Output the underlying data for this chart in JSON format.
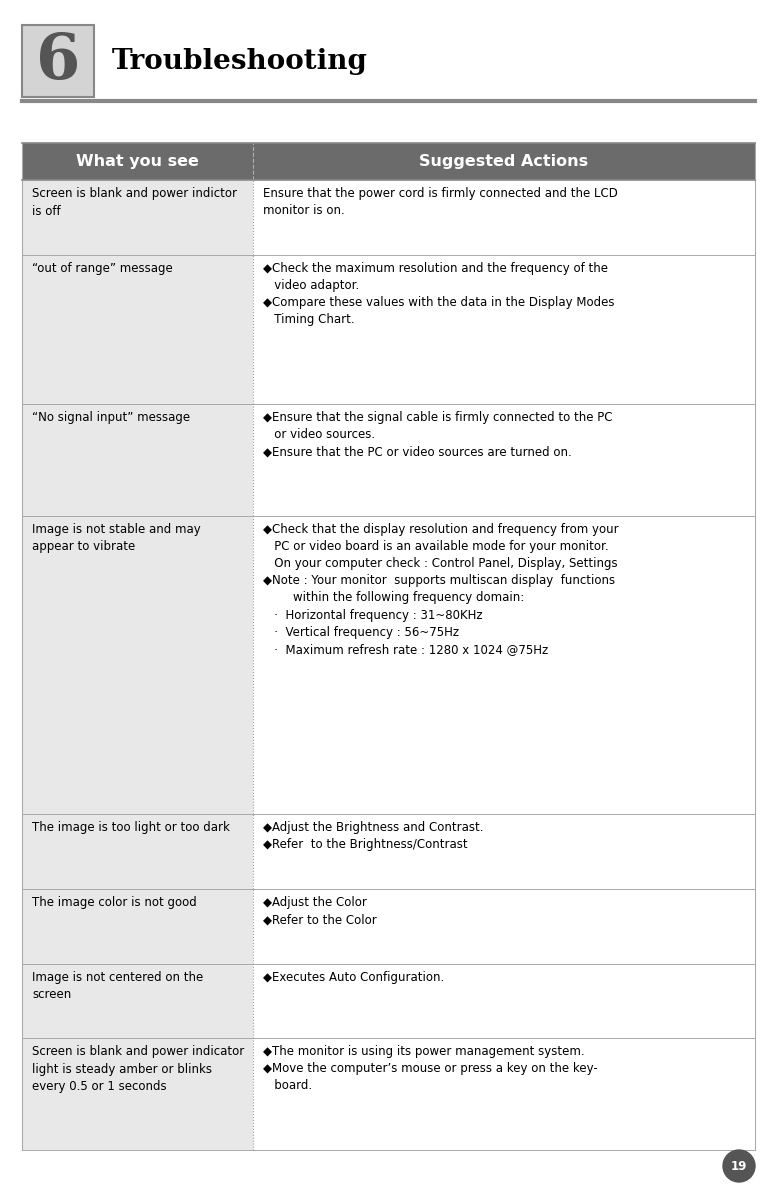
{
  "page_bg": "#ffffff",
  "header_bg": "#6b6b6b",
  "header_text_color": "#ffffff",
  "header_font_size": 11.5,
  "cell_font_size": 8.5,
  "chapter_num": "6",
  "chapter_title": "Troubleshooting",
  "page_number": "19",
  "col1_header": "What you see",
  "col2_header": "Suggested Actions",
  "col_split": 0.315,
  "row_left_bg": "#e8e8e8",
  "row_right_bg": "#ffffff",
  "table_rows": [
    {
      "left": "Screen is blank and power indictor\nis off",
      "right_lines": [
        {
          "text": "Ensure that the power cord is firmly connected and the LCD",
          "indent": 0,
          "bullet": false
        },
        {
          "text": "monitor is on.",
          "indent": 0,
          "bullet": false
        }
      ]
    },
    {
      "left": "“out of range” message",
      "right_lines": [
        {
          "text": "◆Check the maximum resolution and the frequency of the",
          "indent": 0,
          "bullet": false
        },
        {
          "text": "   video adaptor.",
          "indent": 0,
          "bullet": false
        },
        {
          "text": "◆Compare these values with the data in the Display Modes",
          "indent": 0,
          "bullet": false
        },
        {
          "text": "   Timing Chart.",
          "indent": 0,
          "bullet": false
        }
      ]
    },
    {
      "left": "“No signal input” message",
      "right_lines": [
        {
          "text": "◆Ensure that the signal cable is firmly connected to the PC",
          "indent": 0,
          "bullet": false
        },
        {
          "text": "   or video sources.",
          "indent": 0,
          "bullet": false
        },
        {
          "text": "◆Ensure that the PC or video sources are turned on.",
          "indent": 0,
          "bullet": false
        }
      ]
    },
    {
      "left": "Image is not stable and may\nappear to vibrate",
      "right_lines": [
        {
          "text": "◆Check that the display resolution and frequency from your",
          "indent": 0,
          "bullet": false
        },
        {
          "text": "   PC or video board is an available mode for your monitor.",
          "indent": 0,
          "bullet": false
        },
        {
          "text": "   On your computer check : Control Panel, Display, Settings",
          "indent": 0,
          "bullet": false
        },
        {
          "text": "◆Note : Your monitor  supports multiscan display  functions",
          "indent": 0,
          "bullet": false
        },
        {
          "text": "        within the following frequency domain:",
          "indent": 0,
          "bullet": false
        },
        {
          "text": "   ·  Horizontal frequency : 31~80KHz",
          "indent": 0,
          "bullet": false
        },
        {
          "text": "   ·  Vertical frequency : 56~75Hz",
          "indent": 0,
          "bullet": false
        },
        {
          "text": "   ·  Maximum refresh rate : 1280 x 1024 @75Hz",
          "indent": 0,
          "bullet": false
        }
      ]
    },
    {
      "left": "The image is too light or too dark",
      "right_lines": [
        {
          "text": "◆Adjust the Brightness and Contrast.",
          "indent": 0,
          "bullet": false
        },
        {
          "text": "◆Refer  to the Brightness/Contrast",
          "indent": 0,
          "bullet": false
        }
      ]
    },
    {
      "left": "The image color is not good",
      "right_lines": [
        {
          "text": "◆Adjust the Color",
          "indent": 0,
          "bullet": false
        },
        {
          "text": "◆Refer to the Color",
          "indent": 0,
          "bullet": false
        }
      ]
    },
    {
      "left": "Image is not centered on the\nscreen",
      "right_lines": [
        {
          "text": "◆Executes Auto Configuration.",
          "indent": 0,
          "bullet": false
        }
      ]
    },
    {
      "left": "Screen is blank and power indicator\nlight is steady amber or blinks\nevery 0.5 or 1 seconds",
      "right_lines": [
        {
          "text": "◆The monitor is using its power management system.",
          "indent": 0,
          "bullet": false
        },
        {
          "text": "◆Move the computer’s mouse or press a key on the key-",
          "indent": 0,
          "bullet": false
        },
        {
          "text": "   board.",
          "indent": 0,
          "bullet": false
        }
      ]
    }
  ]
}
